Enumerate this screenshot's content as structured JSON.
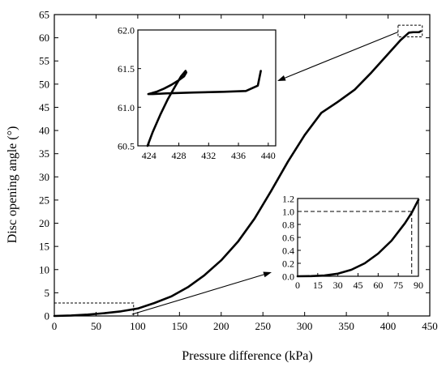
{
  "chart_data": [
    {
      "type": "line",
      "xlabel": "Pressure difference (kPa)",
      "ylabel": "Disc opening angle (°)",
      "xlim": [
        0,
        450
      ],
      "ylim": [
        0,
        65
      ],
      "xticks": [
        0,
        50,
        100,
        150,
        200,
        250,
        300,
        350,
        400,
        450
      ],
      "yticks": [
        0,
        5,
        10,
        15,
        20,
        25,
        30,
        35,
        40,
        45,
        50,
        55,
        60,
        65
      ],
      "grid": false,
      "series": [
        {
          "x": [
            0,
            20,
            40,
            60,
            80,
            100,
            120,
            140,
            160,
            180,
            200,
            220,
            240,
            260,
            280,
            300,
            320,
            340,
            360,
            380,
            400,
            415,
            425,
            430,
            437,
            439
          ],
          "y": [
            0,
            0.1,
            0.3,
            0.6,
            1.0,
            1.6,
            2.8,
            4.2,
            6.2,
            8.8,
            12.0,
            16.0,
            21.0,
            27.0,
            33.3,
            39.0,
            43.8,
            46.2,
            48.8,
            52.5,
            56.5,
            59.5,
            61.1,
            61.2,
            61.2,
            61.4
          ]
        }
      ],
      "zoom_boxes": [
        {
          "x": [
            0,
            95
          ],
          "y": [
            0,
            2.8
          ]
        },
        {
          "x": [
            412,
            441
          ],
          "y": [
            60.2,
            62.7
          ]
        }
      ]
    },
    {
      "type": "line",
      "inset": "upper-left",
      "xlim": [
        422.5,
        441
      ],
      "ylim": [
        60.5,
        62.0
      ],
      "xticks": [
        424,
        428,
        432,
        436,
        440
      ],
      "yticks": [
        60.5,
        61.0,
        61.5,
        62.0
      ],
      "ytick_labels": [
        "60.5",
        "61.0",
        "61.5",
        "62.0"
      ],
      "series": [
        {
          "x": [
            423.8,
            424.5,
            425.5,
            426.5,
            427.5,
            428.3,
            428.9,
            429.0,
            428.7,
            428.0,
            427.0,
            426.0,
            425.0,
            424.3,
            423.9,
            424.5,
            426.5,
            430.0,
            434.0,
            437.0,
            438.6,
            439.0
          ],
          "y": [
            60.5,
            60.68,
            60.9,
            61.1,
            61.27,
            61.4,
            61.47,
            61.45,
            61.4,
            61.35,
            61.29,
            61.24,
            61.2,
            61.18,
            61.17,
            61.17,
            61.18,
            61.19,
            61.2,
            61.21,
            61.28,
            61.47
          ]
        }
      ]
    },
    {
      "type": "line",
      "inset": "lower-right",
      "xlim": [
        0,
        90
      ],
      "ylim": [
        0,
        1.2
      ],
      "xticks": [
        0,
        15,
        30,
        45,
        60,
        75,
        90
      ],
      "yticks": [
        0.0,
        0.2,
        0.4,
        0.6,
        0.8,
        1.0,
        1.2
      ],
      "ytick_labels": [
        "0.0",
        "0.2",
        "0.4",
        "0.6",
        "0.8",
        "1.0",
        "1.2"
      ],
      "reference_point": {
        "x": 85,
        "y": 1.0
      },
      "series": [
        {
          "x": [
            0,
            10,
            20,
            30,
            40,
            50,
            60,
            70,
            80,
            85,
            90
          ],
          "y": [
            0,
            0.002,
            0.012,
            0.04,
            0.1,
            0.2,
            0.35,
            0.55,
            0.82,
            0.98,
            1.18
          ]
        }
      ]
    }
  ]
}
